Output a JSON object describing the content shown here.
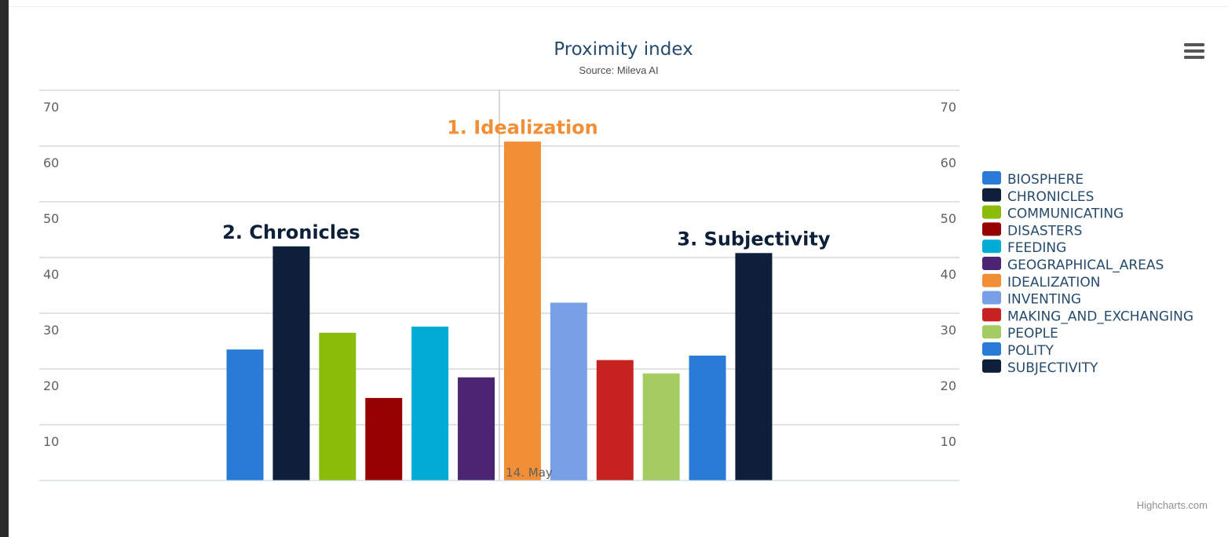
{
  "chart_data": {
    "type": "bar",
    "title": "Proximity index",
    "subtitle": "Source: Mileva AI",
    "categories": [
      "14. May"
    ],
    "ylim": [
      0,
      70
    ],
    "yticks": [
      10,
      20,
      30,
      40,
      50,
      60,
      70
    ],
    "grid": true,
    "legend_position": "right",
    "series": [
      {
        "name": "BIOSPHERE",
        "color": "#2a7ad8",
        "values": [
          23.5
        ]
      },
      {
        "name": "CHRONICLES",
        "color": "#0e1f3a",
        "values": [
          42
        ]
      },
      {
        "name": "COMMUNICATING",
        "color": "#8bbc0a",
        "values": [
          26.5
        ]
      },
      {
        "name": "DISASTERS",
        "color": "#960000",
        "values": [
          14.8
        ]
      },
      {
        "name": "FEEDING",
        "color": "#00acd4",
        "values": [
          27.6
        ]
      },
      {
        "name": "GEOGRAPHICAL_AREAS",
        "color": "#4c2474",
        "values": [
          18.5
        ]
      },
      {
        "name": "IDEALIZATION",
        "color": "#f28f36",
        "values": [
          60.8
        ]
      },
      {
        "name": "INVENTING",
        "color": "#77a0e6",
        "values": [
          31.9
        ]
      },
      {
        "name": "MAKING_AND_EXCHANGING",
        "color": "#c6221f",
        "values": [
          21.6
        ]
      },
      {
        "name": "PEOPLE",
        "color": "#a5cb63",
        "values": [
          19.2
        ]
      },
      {
        "name": "POLITY",
        "color": "#2a7ad8",
        "values": [
          22.4
        ]
      },
      {
        "name": "SUBJECTIVITY",
        "color": "#0e1f3a",
        "values": [
          40.8
        ]
      }
    ],
    "annotations": [
      {
        "text": "1. Idealization",
        "series": "IDEALIZATION",
        "color": "#f28f36"
      },
      {
        "text": "2. Chronicles",
        "series": "CHRONICLES",
        "color": "#0e1f3a"
      },
      {
        "text": "3. Subjectivity",
        "series": "SUBJECTIVITY",
        "color": "#0e1f3a"
      }
    ]
  },
  "credits": "Highcharts.com",
  "menu": {
    "icon": "hamburger-menu-icon"
  }
}
